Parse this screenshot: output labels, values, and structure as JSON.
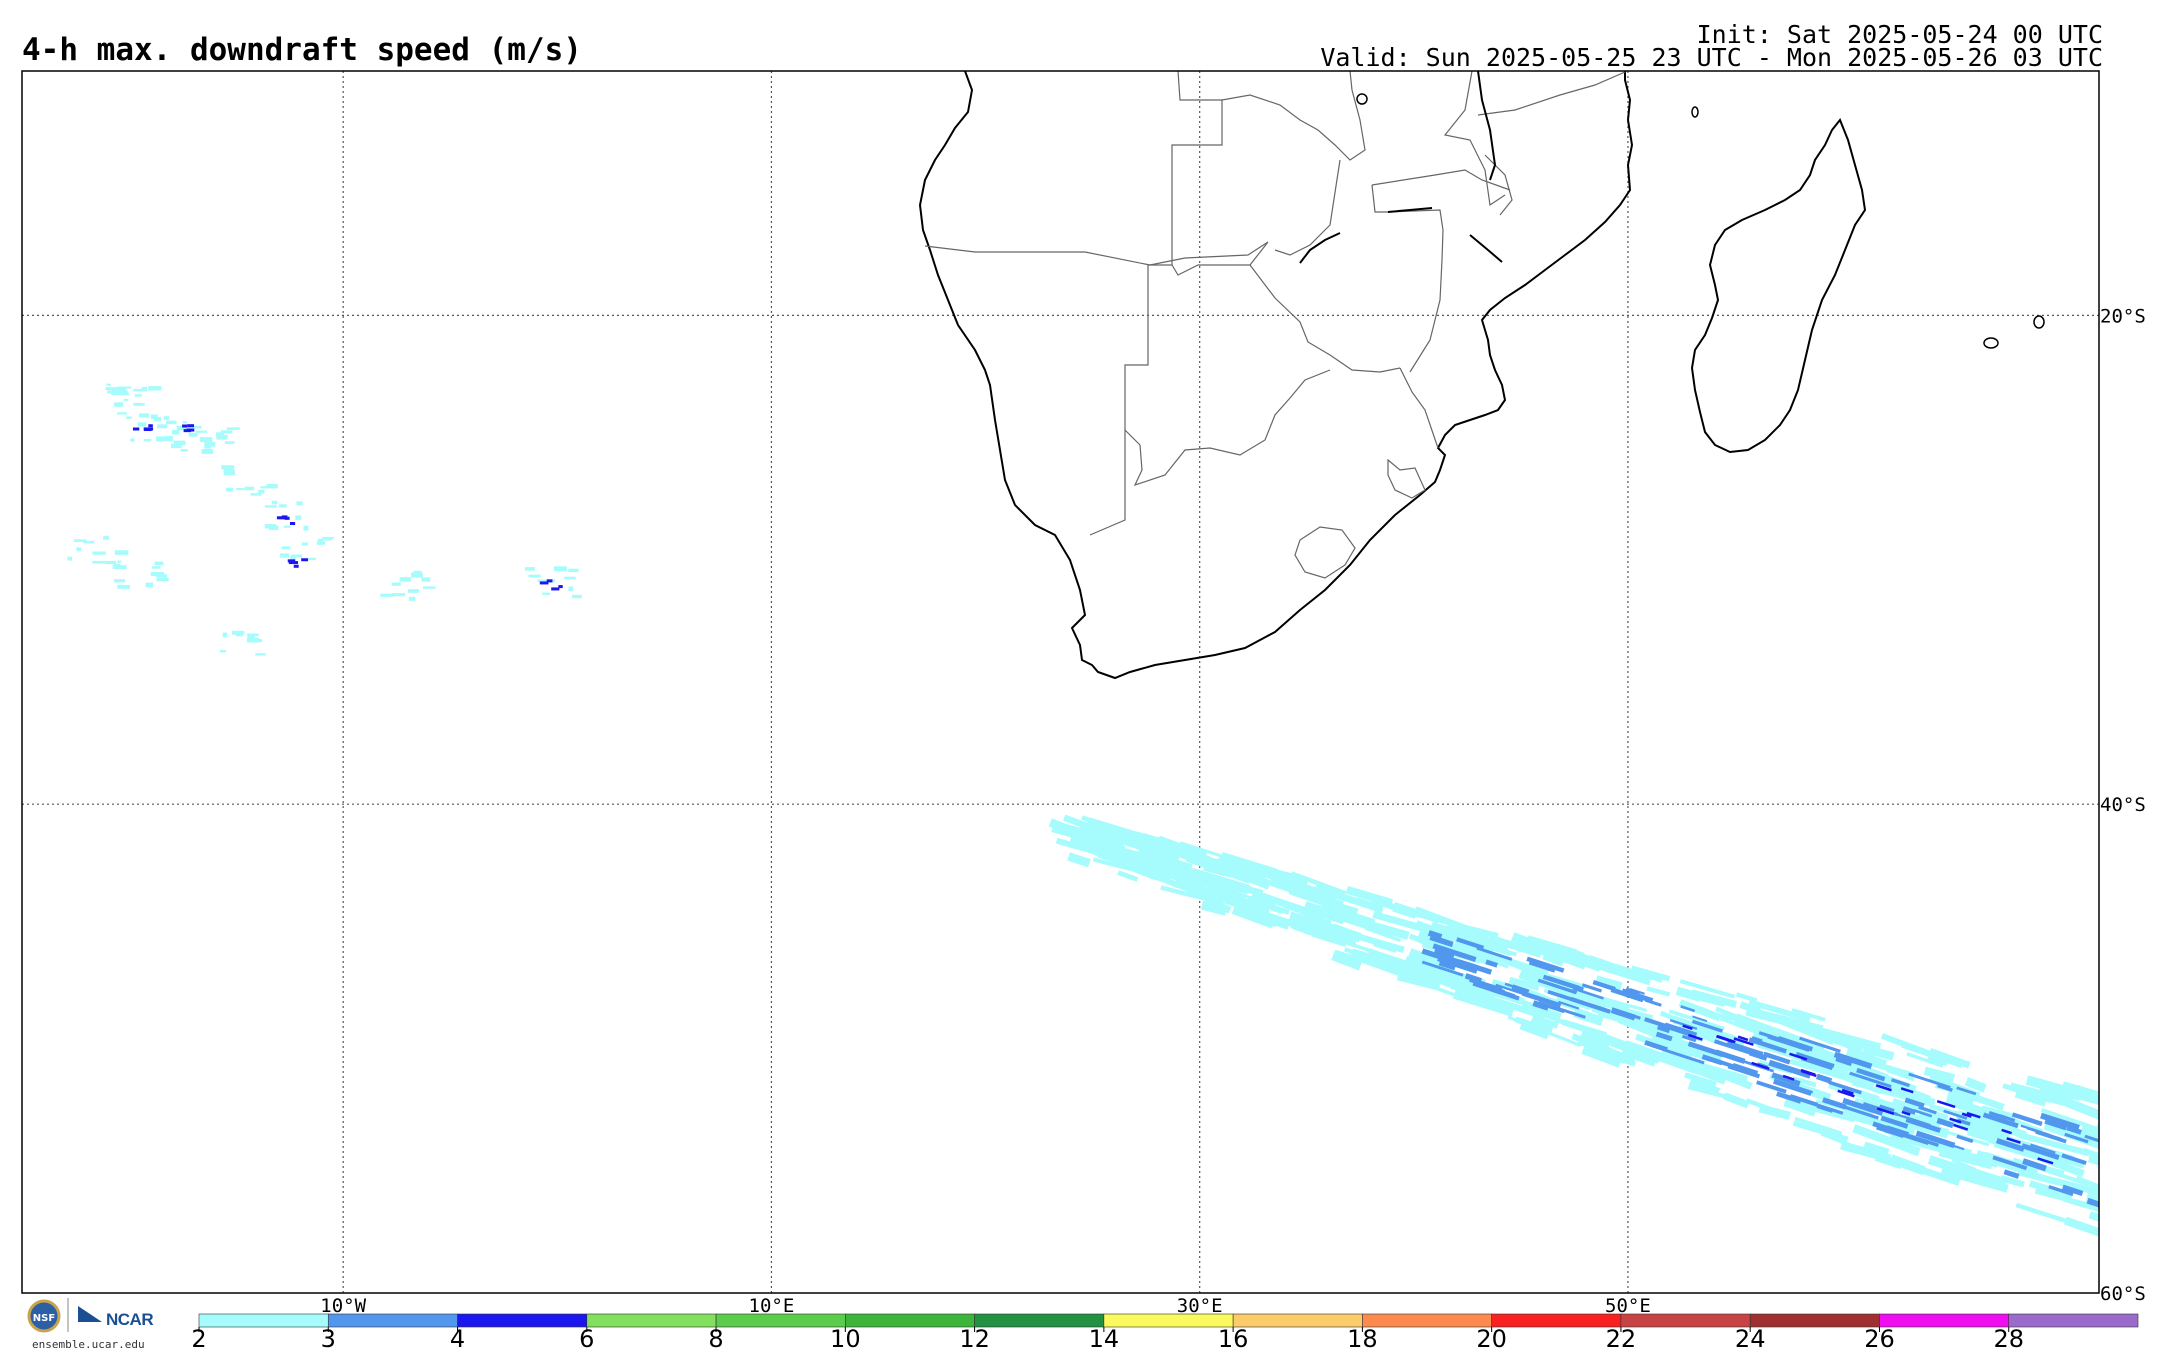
{
  "header": {
    "title": "4-h max. downdraft speed (m/s)",
    "init": "Init: Sat 2025-05-24 00 UTC",
    "valid": "Valid: Sun 2025-05-25 23 UTC - Mon 2025-05-26 03 UTC"
  },
  "map": {
    "projection": "cylindrical",
    "lon_range": [
      -25,
      72
    ],
    "lat_range": [
      -60,
      -10
    ],
    "lon_ticks": [
      {
        "value": -10,
        "label": "10°W"
      },
      {
        "value": 10,
        "label": "10°E"
      },
      {
        "value": 30,
        "label": "30°E"
      },
      {
        "value": 50,
        "label": "50°E"
      }
    ],
    "lat_ticks": [
      {
        "value": -20,
        "label": "20°S"
      },
      {
        "value": -40,
        "label": "40°S"
      },
      {
        "value": -60,
        "label": "60°S"
      }
    ],
    "gridlines": "dotted"
  },
  "colorbar": {
    "ticks": [
      "2",
      "3",
      "4",
      "6",
      "8",
      "10",
      "12",
      "14",
      "16",
      "18",
      "20",
      "22",
      "24",
      "26",
      "28"
    ],
    "colors": [
      "#a6fcfc",
      "#5197ee",
      "#1c16ef",
      "#82e05e",
      "#5ccc4c",
      "#3cb53a",
      "#239142",
      "#fafa5e",
      "#fdcc6a",
      "#fd8b50",
      "#f82020",
      "#c84444",
      "#a03030",
      "#ef0eef",
      "#9b6bcc"
    ]
  },
  "logo": {
    "org": "NCAR",
    "url": "ensemble.ucar.edu"
  }
}
